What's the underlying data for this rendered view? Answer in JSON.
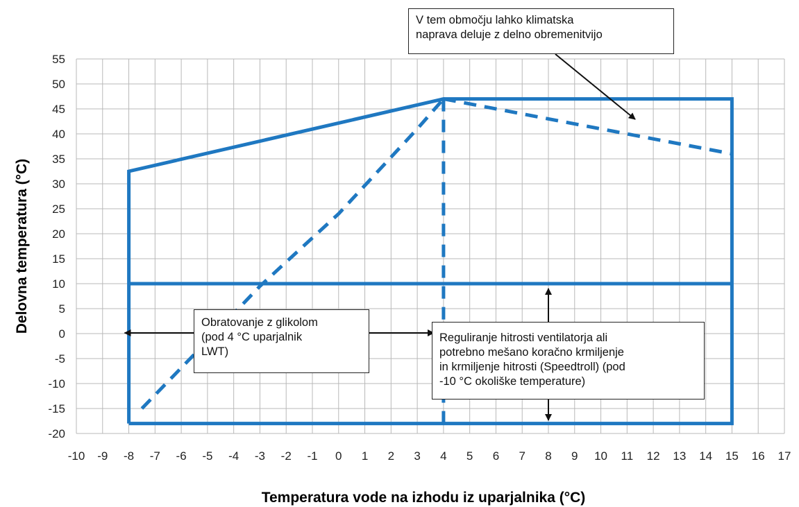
{
  "chart_data": {
    "type": "line",
    "xlabel": "Temperatura vode na izhodu iz uparjalnika (°C)",
    "ylabel": "Delovna temperatura (°C)",
    "xlim": [
      -10,
      17
    ],
    "ylim": [
      -20,
      55
    ],
    "x_ticks": [
      -10,
      -9,
      -8,
      -7,
      -6,
      -5,
      -4,
      -3,
      -2,
      -1,
      0,
      1,
      2,
      3,
      4,
      5,
      6,
      7,
      8,
      9,
      10,
      11,
      12,
      13,
      14,
      15,
      16,
      17
    ],
    "y_ticks": [
      -20,
      -15,
      -10,
      -5,
      0,
      5,
      10,
      15,
      20,
      25,
      30,
      35,
      40,
      45,
      50,
      55
    ],
    "grid": true,
    "series": [
      {
        "style": "solid",
        "color": "#1f78c1",
        "points": [
          [
            -8,
            -18
          ],
          [
            -8,
            32.5
          ],
          [
            4,
            47
          ],
          [
            15,
            47
          ],
          [
            15,
            -18
          ],
          [
            -8,
            -18
          ]
        ]
      },
      {
        "style": "solid",
        "color": "#1f78c1",
        "points": [
          [
            -8,
            10
          ],
          [
            15,
            10
          ]
        ]
      },
      {
        "style": "dashed",
        "color": "#1f78c1",
        "points": [
          [
            -7.5,
            -15
          ],
          [
            -4,
            4
          ],
          [
            -3,
            9.5
          ],
          [
            0,
            24
          ],
          [
            3,
            41
          ],
          [
            4,
            47
          ]
        ]
      },
      {
        "style": "dashed",
        "color": "#1f78c1",
        "points": [
          [
            4,
            47
          ],
          [
            4,
            -18
          ]
        ]
      },
      {
        "style": "dashed",
        "color": "#1f78c1",
        "points": [
          [
            4,
            47
          ],
          [
            8,
            43
          ],
          [
            11,
            40
          ],
          [
            15,
            36
          ]
        ]
      }
    ],
    "annotations": [
      {
        "lines": [
          "V tem območju lahko klimatska",
          "naprava deluje z delno obremenitvijo"
        ]
      },
      {
        "lines": [
          "Obratovanje z glikolom",
          "(pod 4 °C uparjalnik",
          "LWT)"
        ]
      },
      {
        "lines": [
          "Reguliranje hitrosti ventilatorja ali",
          "potrebno mešano koračno krmiljenje",
          "in krmiljenje hitrosti (Speedtroll) (pod",
          "-10 °C okoliške temperature)"
        ]
      }
    ]
  }
}
